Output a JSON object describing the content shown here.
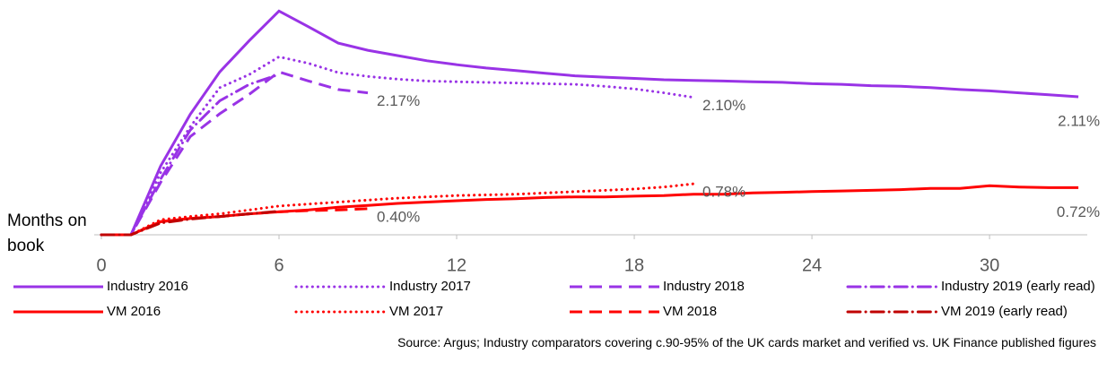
{
  "chart_data": {
    "type": "line",
    "xlabel": "Months on book",
    "note": "Source: Argus; Industry comparators covering c.90-95% of the UK cards market and verified vs. UK Finance published figures",
    "x": [
      0,
      1,
      2,
      3,
      4,
      5,
      6,
      7,
      8,
      9,
      10,
      11,
      12,
      13,
      14,
      15,
      16,
      17,
      18,
      19,
      20,
      21,
      22,
      23,
      24,
      25,
      26,
      27,
      28,
      29,
      30,
      31,
      32,
      33
    ],
    "xlim": [
      0,
      33.3
    ],
    "xticks": [
      0,
      6,
      12,
      18,
      24,
      30
    ],
    "ylim": [
      0,
      3.5
    ],
    "series": [
      {
        "name": "Industry 2016",
        "color": "#9933e6",
        "dash": "solid",
        "values": [
          0,
          0,
          1.05,
          1.84,
          2.49,
          2.97,
          3.42,
          3.18,
          2.93,
          2.82,
          2.74,
          2.66,
          2.6,
          2.55,
          2.51,
          2.47,
          2.43,
          2.41,
          2.39,
          2.37,
          2.36,
          2.35,
          2.34,
          2.33,
          2.31,
          2.3,
          2.28,
          2.27,
          2.25,
          2.22,
          2.2,
          2.17,
          2.14,
          2.11
        ],
        "value_labels": [
          null,
          null,
          null,
          null,
          null,
          null,
          null,
          null,
          null,
          null,
          null,
          null,
          null,
          null,
          null,
          null,
          null,
          null,
          null,
          null,
          null,
          null,
          null,
          null,
          null,
          null,
          null,
          null,
          null,
          null,
          null,
          null,
          null,
          "2.11%"
        ]
      },
      {
        "name": "Industry 2017",
        "color": "#9933e6",
        "dash": "dotted",
        "values": [
          0,
          0,
          0.95,
          1.65,
          2.25,
          2.45,
          2.72,
          2.62,
          2.48,
          2.42,
          2.38,
          2.35,
          2.34,
          2.33,
          2.32,
          2.31,
          2.3,
          2.27,
          2.23,
          2.17,
          2.1,
          null,
          null,
          null,
          null,
          null,
          null,
          null,
          null,
          null,
          null,
          null,
          null,
          null
        ],
        "value_labels": [
          null,
          null,
          null,
          null,
          null,
          null,
          null,
          null,
          null,
          null,
          null,
          null,
          null,
          null,
          null,
          null,
          null,
          null,
          null,
          null,
          "2.10%",
          null,
          null,
          null,
          null,
          null,
          null,
          null,
          null,
          null,
          null,
          null,
          null,
          null
        ]
      },
      {
        "name": "Industry 2018",
        "color": "#9933e6",
        "dash": "dashed",
        "values": [
          0,
          0,
          0.8,
          1.5,
          1.85,
          2.15,
          2.49,
          2.35,
          2.22,
          2.17,
          null,
          null,
          null,
          null,
          null,
          null,
          null,
          null,
          null,
          null,
          null,
          null,
          null,
          null,
          null,
          null,
          null,
          null,
          null,
          null,
          null,
          null,
          null,
          null
        ],
        "value_labels": [
          null,
          null,
          null,
          null,
          null,
          null,
          null,
          null,
          null,
          "2.17%",
          null,
          null,
          null,
          null,
          null,
          null,
          null,
          null,
          null,
          null,
          null,
          null,
          null,
          null,
          null,
          null,
          null,
          null,
          null,
          null,
          null,
          null,
          null,
          null
        ]
      },
      {
        "name": "Industry 2019 (early read)",
        "color": "#9933e6",
        "dash": "dashdot",
        "values": [
          0,
          0,
          0.85,
          1.6,
          2.05,
          2.3,
          2.45,
          null,
          null,
          null,
          null,
          null,
          null,
          null,
          null,
          null,
          null,
          null,
          null,
          null,
          null,
          null,
          null,
          null,
          null,
          null,
          null,
          null,
          null,
          null,
          null,
          null,
          null,
          null
        ]
      },
      {
        "name": "VM 2016",
        "color": "#ff0000",
        "dash": "solid",
        "values": [
          0,
          0,
          0.2,
          0.25,
          0.28,
          0.32,
          0.35,
          0.38,
          0.42,
          0.45,
          0.48,
          0.5,
          0.52,
          0.54,
          0.55,
          0.57,
          0.58,
          0.58,
          0.59,
          0.6,
          0.62,
          0.62,
          0.64,
          0.65,
          0.66,
          0.67,
          0.68,
          0.69,
          0.71,
          0.71,
          0.75,
          0.73,
          0.72,
          0.72
        ],
        "value_labels": [
          null,
          null,
          null,
          null,
          null,
          null,
          null,
          null,
          null,
          null,
          null,
          null,
          null,
          null,
          null,
          null,
          null,
          null,
          null,
          null,
          null,
          null,
          null,
          null,
          null,
          null,
          null,
          null,
          null,
          null,
          null,
          null,
          null,
          "0.72%"
        ]
      },
      {
        "name": "VM 2017",
        "color": "#ff0000",
        "dash": "dotted",
        "values": [
          0,
          0,
          0.23,
          0.28,
          0.32,
          0.38,
          0.44,
          0.47,
          0.5,
          0.53,
          0.56,
          0.58,
          0.6,
          0.61,
          0.62,
          0.64,
          0.66,
          0.68,
          0.7,
          0.73,
          0.78,
          null,
          null,
          null,
          null,
          null,
          null,
          null,
          null,
          null,
          null,
          null,
          null,
          null
        ],
        "value_labels": [
          null,
          null,
          null,
          null,
          null,
          null,
          null,
          null,
          null,
          null,
          null,
          null,
          null,
          null,
          null,
          null,
          null,
          null,
          null,
          null,
          "0.78%",
          null,
          null,
          null,
          null,
          null,
          null,
          null,
          null,
          null,
          null,
          null,
          null,
          null
        ]
      },
      {
        "name": "VM 2018",
        "color": "#ff0000",
        "dash": "dashed",
        "values": [
          0,
          0,
          0.2,
          0.25,
          0.28,
          0.32,
          0.35,
          0.37,
          0.38,
          0.4,
          null,
          null,
          null,
          null,
          null,
          null,
          null,
          null,
          null,
          null,
          null,
          null,
          null,
          null,
          null,
          null,
          null,
          null,
          null,
          null,
          null,
          null,
          null,
          null
        ],
        "value_labels": [
          null,
          null,
          null,
          null,
          null,
          null,
          null,
          null,
          null,
          "0.40%",
          null,
          null,
          null,
          null,
          null,
          null,
          null,
          null,
          null,
          null,
          null,
          null,
          null,
          null,
          null,
          null,
          null,
          null,
          null,
          null,
          null,
          null,
          null,
          null
        ]
      },
      {
        "name": "VM 2019 (early read)",
        "color": "#c00000",
        "dash": "dashdot",
        "values": [
          0,
          0,
          0.18,
          0.24,
          0.28,
          0.32,
          0.36,
          null,
          null,
          null,
          null,
          null,
          null,
          null,
          null,
          null,
          null,
          null,
          null,
          null,
          null,
          null,
          null,
          null,
          null,
          null,
          null,
          null,
          null,
          null,
          null,
          null,
          null,
          null
        ]
      }
    ]
  }
}
